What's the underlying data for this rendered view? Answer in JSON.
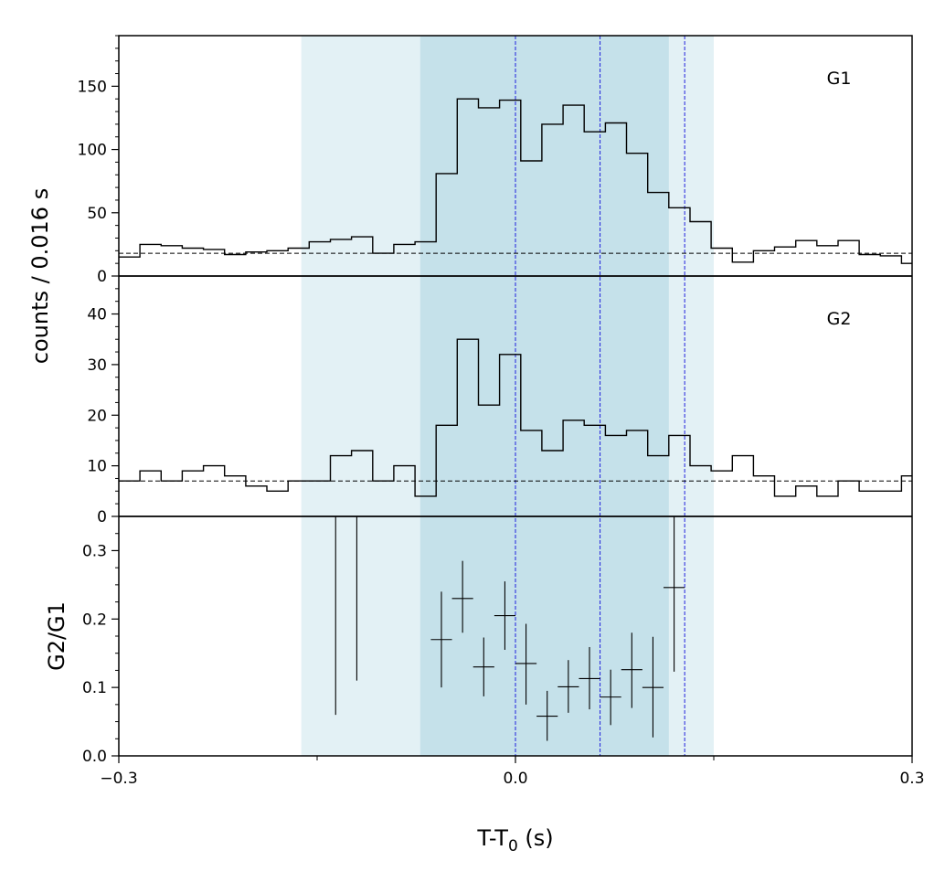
{
  "chart_data": {
    "type": "step",
    "xlabel_main": "T-T",
    "xlabel_sub": "0",
    "xlabel_unit": " (s)",
    "ylabel_counts": "counts /  0.016 s",
    "xlim": [
      -0.3,
      0.3
    ],
    "x_ticks": [
      -0.3,
      0.0,
      0.3
    ],
    "x_tick_labels": [
      "−0.3",
      "0.0",
      "0.3"
    ],
    "x_minor_ticks": [
      -0.15,
      0.15
    ],
    "bands": {
      "light": [
        -0.162,
        0.15
      ],
      "dark": [
        -0.072,
        0.116
      ]
    },
    "blue_lines": [
      0.0,
      0.064,
      0.128
    ],
    "panels": [
      {
        "label": "G1",
        "ylim": [
          0,
          190
        ],
        "y_ticks": [
          0,
          50,
          100,
          150
        ],
        "y_tick_labels": [
          "0",
          "50",
          "100",
          "150"
        ],
        "y_minor_step": 10,
        "background_level": 18,
        "bin_width": 0.016,
        "bin_start": -0.3,
        "counts": [
          15,
          25,
          24,
          22,
          21,
          17,
          19,
          20,
          22,
          27,
          29,
          31,
          18,
          25,
          27,
          81,
          140,
          133,
          139,
          91,
          120,
          135,
          114,
          121,
          97,
          66,
          54,
          43,
          22,
          11,
          20,
          23,
          28,
          24,
          28,
          17,
          16,
          10
        ]
      },
      {
        "label": "G2",
        "ylim": [
          0,
          47.5
        ],
        "y_ticks": [
          0,
          10,
          20,
          30,
          40
        ],
        "y_tick_labels": [
          "0",
          "10",
          "20",
          "30",
          "40"
        ],
        "y_minor_step": 2.5,
        "background_level": 7,
        "bin_width": 0.016,
        "bin_start": -0.3,
        "counts": [
          7,
          9,
          7,
          9,
          10,
          8,
          6,
          5,
          7,
          7,
          12,
          13,
          7,
          10,
          4,
          18,
          35,
          22,
          32,
          17,
          13,
          19,
          18,
          16,
          17,
          12,
          16,
          10,
          9,
          12,
          8,
          4,
          6,
          4,
          7,
          5,
          5,
          8
        ]
      }
    ],
    "ratio": {
      "ylabel": "G2/G1",
      "ylim": [
        0,
        0.35
      ],
      "y_ticks": [
        0.0,
        0.1,
        0.2,
        0.3
      ],
      "y_tick_labels": [
        "0.0",
        "0.1",
        "0.2",
        "0.3"
      ],
      "y_minor_step": 0.025,
      "points": [
        {
          "x": -0.136,
          "lo": 0.06,
          "hi": 0.35
        },
        {
          "x": -0.12,
          "lo": 0.11,
          "hi": 0.35
        },
        {
          "x": -0.056,
          "y": 0.17,
          "lo": 0.1,
          "hi": 0.24,
          "xerr": 0.008
        },
        {
          "x": -0.04,
          "y": 0.23,
          "lo": 0.18,
          "hi": 0.285,
          "xerr": 0.008
        },
        {
          "x": -0.024,
          "y": 0.13,
          "lo": 0.087,
          "hi": 0.173,
          "xerr": 0.008
        },
        {
          "x": -0.008,
          "y": 0.205,
          "lo": 0.155,
          "hi": 0.255,
          "xerr": 0.008
        },
        {
          "x": 0.008,
          "y": 0.135,
          "lo": 0.075,
          "hi": 0.193,
          "xerr": 0.008
        },
        {
          "x": 0.024,
          "y": 0.058,
          "lo": 0.022,
          "hi": 0.095,
          "xerr": 0.008
        },
        {
          "x": 0.04,
          "y": 0.101,
          "lo": 0.063,
          "hi": 0.14,
          "xerr": 0.008
        },
        {
          "x": 0.056,
          "y": 0.113,
          "lo": 0.068,
          "hi": 0.159,
          "xerr": 0.008
        },
        {
          "x": 0.072,
          "y": 0.086,
          "lo": 0.045,
          "hi": 0.126,
          "xerr": 0.008
        },
        {
          "x": 0.088,
          "y": 0.126,
          "lo": 0.07,
          "hi": 0.18,
          "xerr": 0.008
        },
        {
          "x": 0.104,
          "y": 0.1,
          "lo": 0.027,
          "hi": 0.174,
          "xerr": 0.008
        },
        {
          "x": 0.12,
          "y": 0.246,
          "lo": 0.123,
          "hi": 0.35,
          "xerr": 0.008
        }
      ]
    },
    "colors": {
      "light_band": "#e3f1f5",
      "dark_band": "#c5e1ea",
      "blue_line": "#2020dd",
      "line": "#000000"
    }
  }
}
